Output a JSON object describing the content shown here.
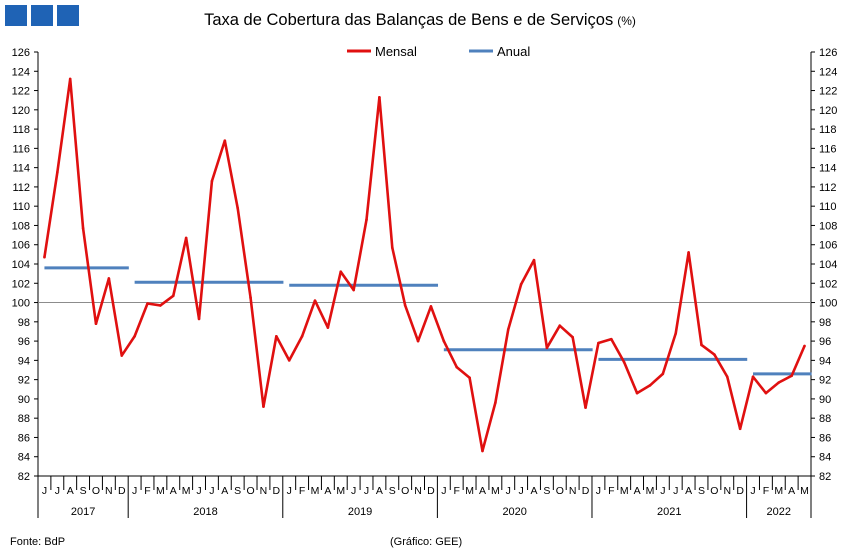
{
  "chart_data": {
    "type": "line",
    "title": "Taxa de Cobertura das Balanças de Bens e de Serviços",
    "title_unit": "(%)",
    "legend": {
      "placement": "top-center",
      "items": [
        {
          "name": "Mensal",
          "color": "#e01010"
        },
        {
          "name": "Anual",
          "color": "#4f81bd"
        }
      ]
    },
    "y_axis": {
      "min": 82,
      "max": 126,
      "step": 2,
      "ticks": [
        82,
        84,
        86,
        88,
        90,
        92,
        94,
        96,
        98,
        100,
        102,
        104,
        106,
        108,
        110,
        112,
        114,
        116,
        118,
        120,
        122,
        124,
        126
      ],
      "reference_line": 100,
      "sides": [
        "left",
        "right"
      ]
    },
    "x_month_labels": [
      "J",
      "J",
      "A",
      "S",
      "O",
      "N",
      "D",
      "J",
      "F",
      "M",
      "A",
      "M",
      "J",
      "J",
      "A",
      "S",
      "O",
      "N",
      "D",
      "J",
      "F",
      "M",
      "A",
      "M",
      "J",
      "J",
      "A",
      "S",
      "O",
      "N",
      "D",
      "J",
      "F",
      "M",
      "A",
      "M",
      "J",
      "J",
      "A",
      "S",
      "O",
      "N",
      "D",
      "J",
      "F",
      "M",
      "A",
      "M",
      "J",
      "J",
      "A",
      "S",
      "O",
      "N",
      "D",
      "J",
      "F",
      "M",
      "A",
      "M"
    ],
    "years": [
      {
        "label": "2017",
        "start": 0,
        "count": 7
      },
      {
        "label": "2018",
        "start": 7,
        "count": 12
      },
      {
        "label": "2019",
        "start": 19,
        "count": 12
      },
      {
        "label": "2020",
        "start": 31,
        "count": 12
      },
      {
        "label": "2021",
        "start": 43,
        "count": 12
      },
      {
        "label": "2022",
        "start": 55,
        "count": 5
      }
    ],
    "series": [
      {
        "name": "Mensal",
        "color": "#e01010",
        "values": [
          104.7,
          113.5,
          123.2,
          107.7,
          97.8,
          102.5,
          94.5,
          96.5,
          99.9,
          99.7,
          100.7,
          106.7,
          98.3,
          112.6,
          116.8,
          109.8,
          100.5,
          89.2,
          96.5,
          94.0,
          96.5,
          100.2,
          97.4,
          103.2,
          101.3,
          108.6,
          121.3,
          105.7,
          99.7,
          96.0,
          99.6,
          96.0,
          93.3,
          92.2,
          84.6,
          89.6,
          97.2,
          101.9,
          104.4,
          95.3,
          97.6,
          96.4,
          89.1,
          95.8,
          96.2,
          93.8,
          90.6,
          91.4,
          92.6,
          96.8,
          105.2,
          95.6,
          94.6,
          92.3,
          86.9,
          92.3,
          90.6,
          91.7,
          92.4,
          95.5
        ]
      },
      {
        "name": "Anual",
        "color": "#4f81bd",
        "segments": [
          {
            "year": "2017",
            "value": 103.6
          },
          {
            "year": "2018",
            "value": 102.1
          },
          {
            "year": "2019",
            "value": 101.8
          },
          {
            "year": "2020",
            "value": 95.1
          },
          {
            "year": "2021",
            "value": 94.1
          },
          {
            "year": "2022",
            "value": 92.6
          }
        ]
      }
    ]
  },
  "footer": {
    "source": "Fonte: BdP",
    "credit": "(Gráfico: GEE)"
  },
  "branding": {
    "logo_color": "#1f63b5"
  }
}
